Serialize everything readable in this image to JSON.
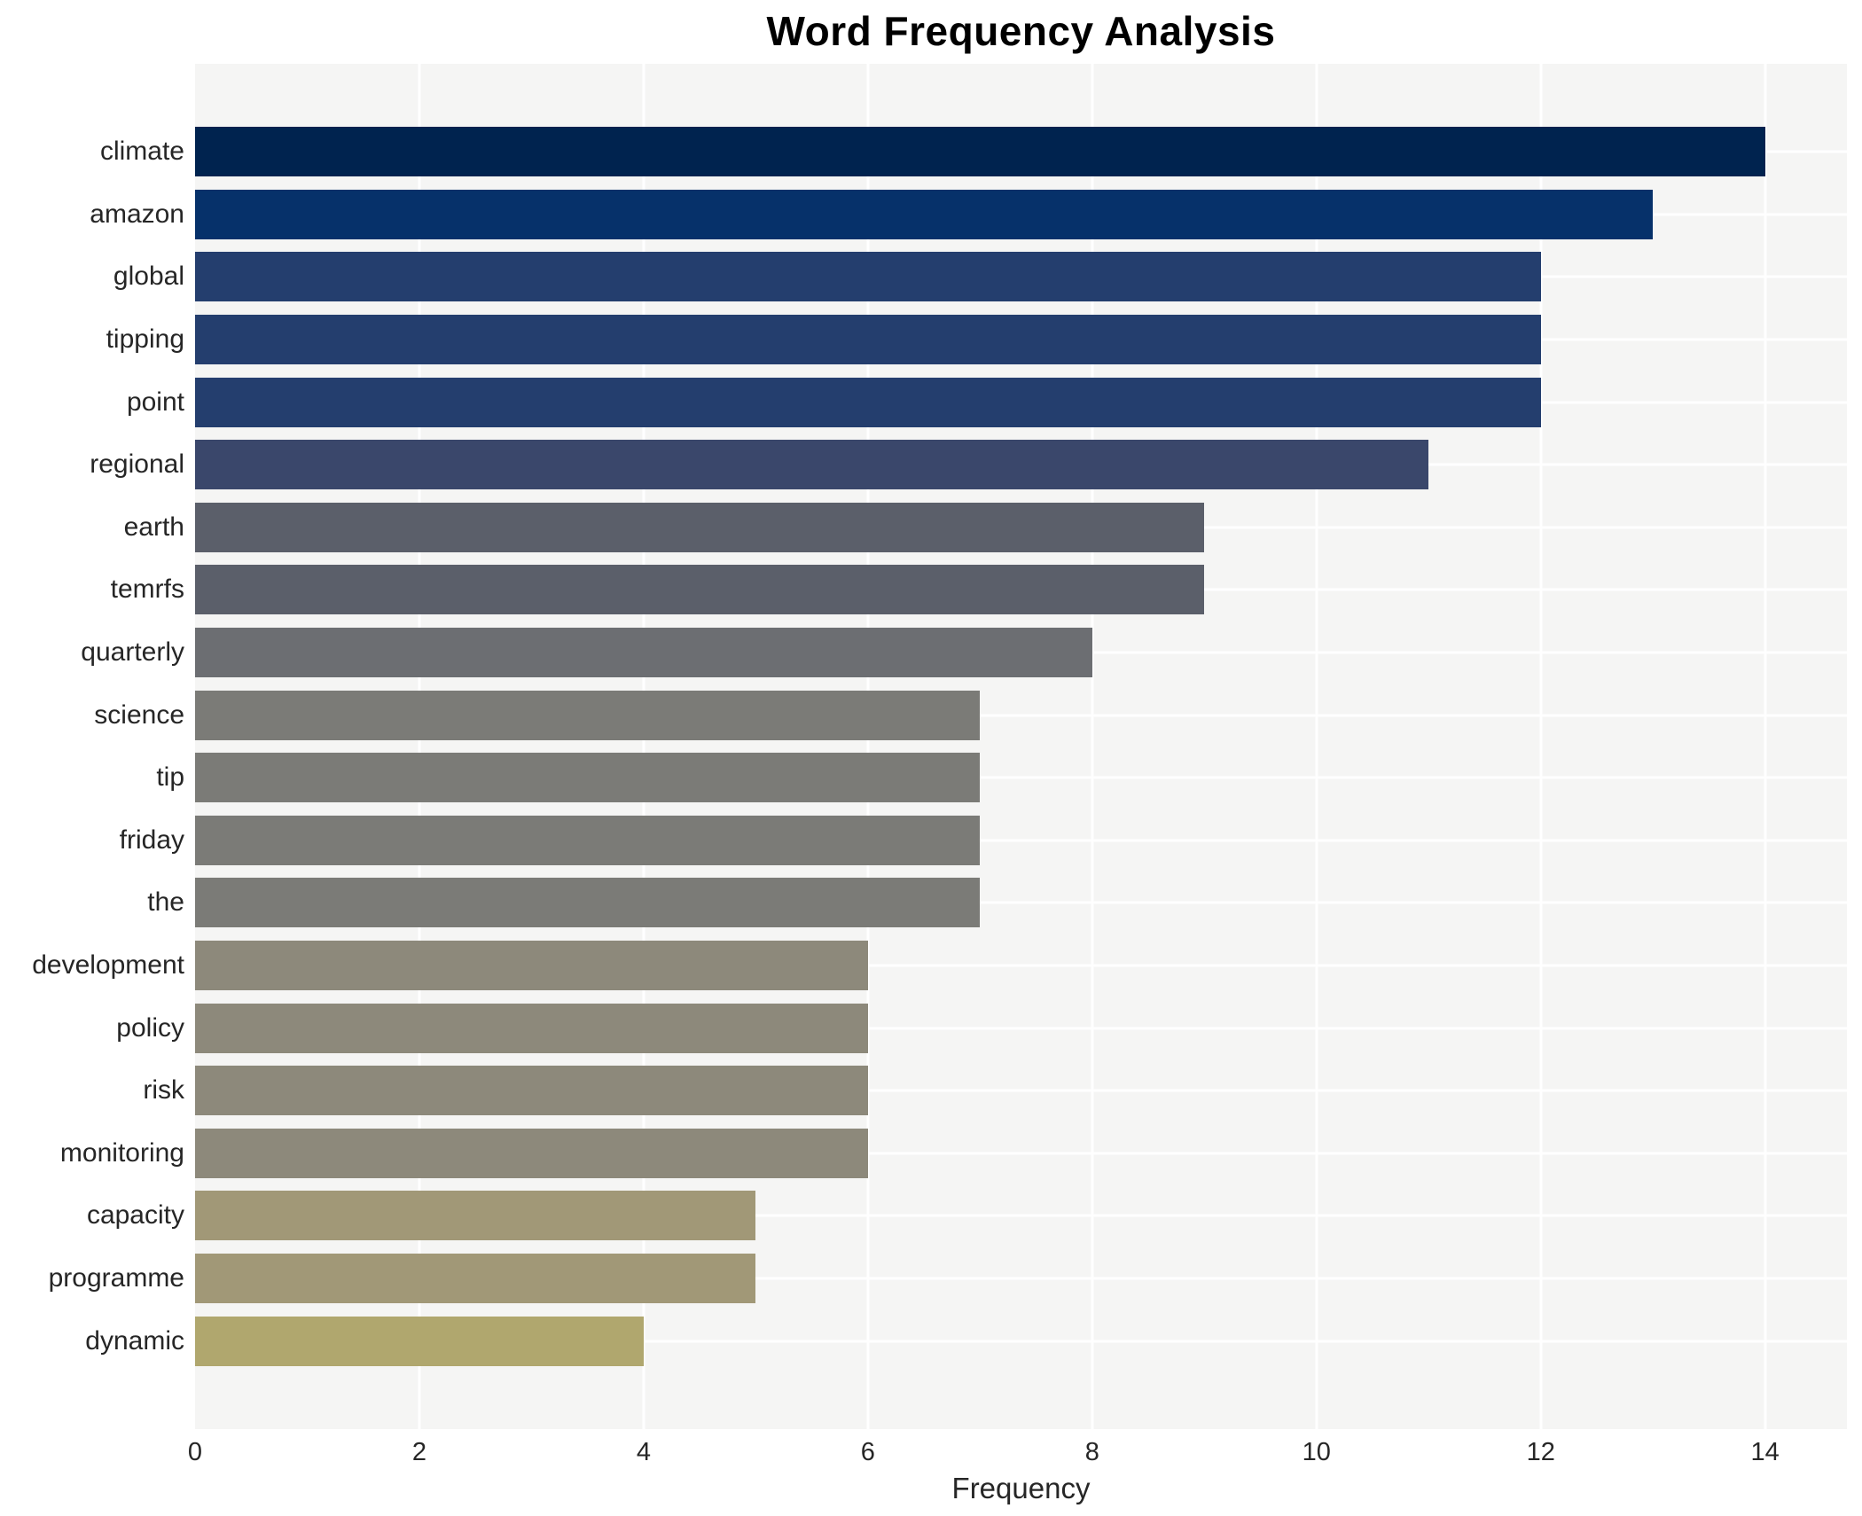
{
  "chart_data": {
    "type": "bar",
    "orientation": "horizontal",
    "title": "Word Frequency Analysis",
    "xlabel": "Frequency",
    "ylabel": "",
    "categories": [
      "climate",
      "amazon",
      "global",
      "tipping",
      "point",
      "regional",
      "earth",
      "temrfs",
      "quarterly",
      "science",
      "tip",
      "friday",
      "the",
      "development",
      "policy",
      "risk",
      "monitoring",
      "capacity",
      "programme",
      "dynamic"
    ],
    "values": [
      14,
      13,
      12,
      12,
      12,
      11,
      9,
      9,
      8,
      7,
      7,
      7,
      7,
      6,
      6,
      6,
      6,
      5,
      5,
      4
    ],
    "bar_colors": [
      "#00234f",
      "#06316a",
      "#243e6e",
      "#243e6e",
      "#243e6e",
      "#3a476b",
      "#5b5f6a",
      "#5b5f6a",
      "#6c6e72",
      "#7b7b77",
      "#7b7b77",
      "#7b7b77",
      "#7b7b77",
      "#8d897b",
      "#8d897b",
      "#8d897b",
      "#8d897b",
      "#a19877",
      "#a19877",
      "#b0a76e"
    ],
    "xticks": [
      0,
      2,
      4,
      6,
      8,
      10,
      12,
      14
    ],
    "xlim": [
      0,
      14.73
    ],
    "grid": "on",
    "legend": "none",
    "plot_bg": "#f5f5f4",
    "figure_bg": "#ffffff",
    "grid_color": "#ffffff",
    "text_color": "#262626"
  }
}
